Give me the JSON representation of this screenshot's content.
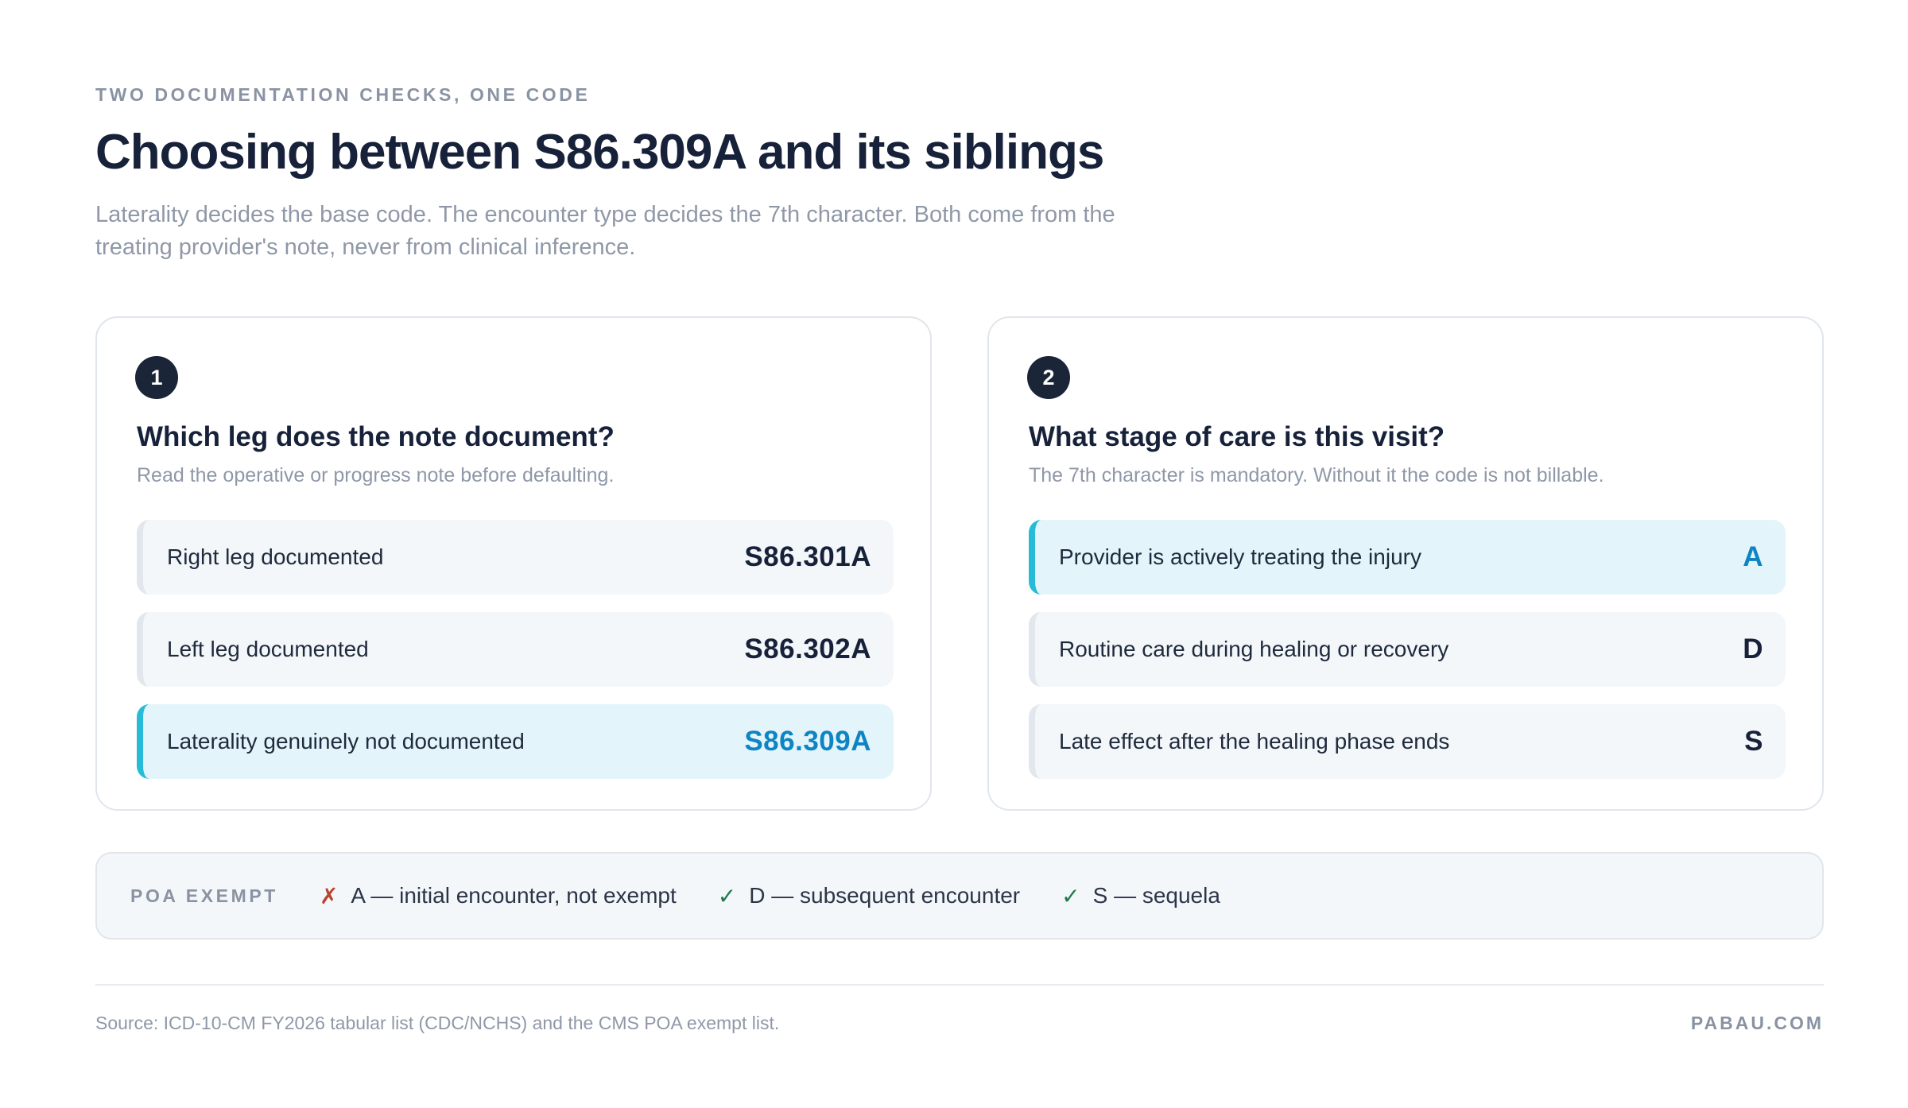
{
  "header": {
    "eyebrow": "TWO DOCUMENTATION CHECKS, ONE CODE",
    "title": "Choosing between S86.309A and its siblings",
    "subtitle": "Laterality decides the base code. The encounter type decides the 7th character. Both come from the treating provider's note, never from clinical inference."
  },
  "cards": [
    {
      "step": "1",
      "title": "Which leg does the note document?",
      "subtitle": "Read the operative or progress note before defaulting.",
      "options": [
        {
          "label": "Right leg documented",
          "code": "S86.301A",
          "highlighted": false
        },
        {
          "label": "Left leg documented",
          "code": "S86.302A",
          "highlighted": false
        },
        {
          "label": "Laterality genuinely not documented",
          "code": "S86.309A",
          "highlighted": true
        }
      ]
    },
    {
      "step": "2",
      "title": "What stage of care is this visit?",
      "subtitle": "The 7th character is mandatory. Without it the code is not billable.",
      "options": [
        {
          "label": "Provider is actively treating the injury",
          "code": "A",
          "highlighted": true
        },
        {
          "label": "Routine care during healing or recovery",
          "code": "D",
          "highlighted": false
        },
        {
          "label": "Late effect after the healing phase ends",
          "code": "S",
          "highlighted": false
        }
      ]
    }
  ],
  "poa": {
    "label": "POA EXEMPT",
    "items": [
      {
        "mark": "✗",
        "status": "not-exempt",
        "text": "A — initial encounter, not exempt"
      },
      {
        "mark": "✓",
        "status": "exempt",
        "text": "D — subsequent encounter"
      },
      {
        "mark": "✓",
        "status": "exempt",
        "text": "S — sequela"
      }
    ]
  },
  "footer": {
    "source": "Source: ICD-10-CM FY2026 tabular list (CDC/NCHS) and the CMS POA exempt list.",
    "brand": "PABAU.COM"
  },
  "colors": {
    "highlight_accent": "#26bcd8",
    "highlight_bg": "#e3f5fa",
    "highlight_code": "#0f84c4",
    "not_exempt_mark": "#b8442e",
    "exempt_mark": "#1d7a4a"
  }
}
